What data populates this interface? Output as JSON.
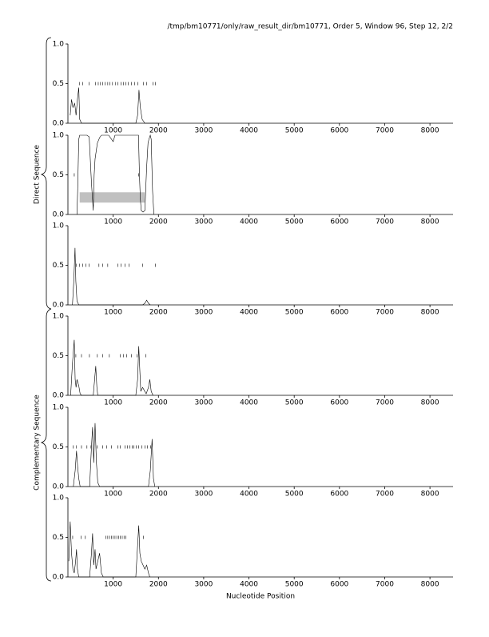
{
  "header": {
    "title": "/tmp/bm10771/only/raw_result_dir/bm10771, Order 5, Window 96, Step 12, 2/2"
  },
  "groups": [
    {
      "label": "Direct Sequence"
    },
    {
      "label": "Complementary Sequence"
    }
  ],
  "x_label": "Nucleotide Position",
  "chart_data": [
    {
      "type": "line",
      "xlim": [
        0,
        8510
      ],
      "ylim": [
        0,
        1
      ],
      "xticks": [
        1000,
        2000,
        3000,
        4000,
        5000,
        6000,
        7000,
        8000
      ],
      "yticks": [
        {
          "value": 0,
          "label": "0.0"
        },
        {
          "value": 0.5,
          "label": "0.5"
        },
        {
          "value": 1,
          "label": "1.0"
        }
      ],
      "x": [
        50,
        80,
        110,
        150,
        180,
        210,
        240,
        260,
        300,
        400,
        800,
        1400,
        1500,
        1540,
        1570,
        1600,
        1640,
        1700,
        2000
      ],
      "values": [
        0.1,
        0.3,
        0.2,
        0.25,
        0.1,
        0.3,
        0.45,
        0.05,
        0,
        0,
        0,
        0,
        0,
        0.1,
        0.42,
        0.2,
        0.05,
        0,
        0
      ],
      "mark_level": 0.5,
      "marks_x": [
        260,
        330,
        470,
        610,
        670,
        720,
        770,
        825,
        880,
        930,
        985,
        1055,
        1105,
        1175,
        1230,
        1280,
        1335,
        1405,
        1475,
        1545,
        1670,
        1740,
        1880,
        1930
      ]
    },
    {
      "type": "line",
      "xlim": [
        0,
        8510
      ],
      "ylim": [
        0,
        1
      ],
      "xticks": [
        1000,
        2000,
        3000,
        4000,
        5000,
        6000,
        7000,
        8000
      ],
      "yticks": [
        {
          "value": 0,
          "label": "0.0"
        },
        {
          "value": 0.5,
          "label": "0.5"
        },
        {
          "value": 1,
          "label": "1.0"
        }
      ],
      "x": [
        200,
        215,
        240,
        260,
        420,
        470,
        520,
        560,
        580,
        600,
        650,
        700,
        740,
        900,
        1000,
        1040,
        1080,
        1400,
        1560,
        1580,
        1600,
        1620,
        1660,
        1700,
        1740,
        1770,
        1790,
        1820,
        1840,
        1870,
        1900
      ],
      "values": [
        0,
        0.3,
        0.95,
        1,
        1,
        0.98,
        0.4,
        0.05,
        0.5,
        0.7,
        0.9,
        0.97,
        1,
        1,
        0.92,
        1,
        1,
        1,
        1,
        0.5,
        0.2,
        0.05,
        0.03,
        0.05,
        0.6,
        0.9,
        0.95,
        1,
        0.95,
        0.3,
        0
      ],
      "mark_level": 0.5,
      "marks_x": [
        140,
        1565
      ],
      "band": {
        "x": [
          260,
          1700
        ],
        "y": [
          0.15,
          0.28
        ],
        "color": "#c0c0c0"
      }
    },
    {
      "type": "line",
      "xlim": [
        0,
        8510
      ],
      "ylim": [
        0,
        1
      ],
      "xticks": [
        1000,
        2000,
        3000,
        4000,
        5000,
        6000,
        7000,
        8000
      ],
      "yticks": [
        {
          "value": 0,
          "label": "0.0"
        },
        {
          "value": 0.5,
          "label": "0.5"
        },
        {
          "value": 1,
          "label": "1.0"
        }
      ],
      "x": [
        100,
        130,
        157,
        175,
        200,
        240,
        1650,
        1700,
        1740,
        1780,
        1820
      ],
      "values": [
        0,
        0.3,
        0.72,
        0.3,
        0.05,
        0,
        0,
        0.02,
        0.06,
        0.02,
        0
      ],
      "mark_level": 0.5,
      "marks_x": [
        190,
        260,
        330,
        400,
        470,
        685,
        770,
        880,
        1105,
        1175,
        1265,
        1350,
        1650,
        1935
      ]
    },
    {
      "type": "line",
      "xlim": [
        0,
        8510
      ],
      "ylim": [
        0,
        1
      ],
      "xticks": [
        1000,
        2000,
        3000,
        4000,
        5000,
        6000,
        7000,
        8000
      ],
      "yticks": [
        {
          "value": 0,
          "label": "0.0"
        },
        {
          "value": 0.5,
          "label": "0.5"
        },
        {
          "value": 1,
          "label": "1.0"
        }
      ],
      "x": [
        60,
        100,
        140,
        160,
        180,
        200,
        240,
        270,
        300,
        560,
        590,
        615,
        640,
        660,
        1500,
        1540,
        1565,
        1590,
        1610,
        1650,
        1700,
        1730,
        1780,
        1810,
        1840,
        1880
      ],
      "values": [
        0,
        0.4,
        0.7,
        0.2,
        0.1,
        0.2,
        0.12,
        0.02,
        0,
        0,
        0.2,
        0.37,
        0.1,
        0,
        0,
        0.2,
        0.62,
        0.3,
        0.05,
        0.1,
        0.05,
        0.02,
        0.1,
        0.2,
        0.05,
        0
      ],
      "mark_level": 0.5,
      "marks_x": [
        175,
        300,
        475,
        650,
        770,
        915,
        1160,
        1230,
        1300,
        1405,
        1530,
        1720
      ]
    },
    {
      "type": "line",
      "xlim": [
        0,
        8510
      ],
      "ylim": [
        0,
        1
      ],
      "xticks": [
        1000,
        2000,
        3000,
        4000,
        5000,
        6000,
        7000,
        8000
      ],
      "yticks": [
        {
          "value": 0,
          "label": "0.0"
        },
        {
          "value": 0.5,
          "label": "0.5"
        },
        {
          "value": 1,
          "label": "1.0"
        }
      ],
      "x": [
        120,
        160,
        190,
        215,
        240,
        270,
        480,
        520,
        545,
        570,
        600,
        630,
        660,
        700,
        1780,
        1820,
        1860,
        1890,
        1920
      ],
      "values": [
        0,
        0.2,
        0.45,
        0.25,
        0.1,
        0,
        0,
        0.5,
        0.75,
        0.3,
        0.8,
        0.3,
        0.05,
        0,
        0,
        0.2,
        0.6,
        0.1,
        0
      ],
      "mark_level": 0.5,
      "marks_x": [
        120,
        190,
        300,
        420,
        510,
        650,
        770,
        860,
        965,
        1105,
        1160,
        1265,
        1315,
        1370,
        1425,
        1460,
        1510,
        1565,
        1635,
        1705,
        1755,
        1825
      ]
    },
    {
      "type": "line",
      "xlim": [
        0,
        8510
      ],
      "ylim": [
        0,
        1
      ],
      "xticks": [
        1000,
        2000,
        3000,
        4000,
        5000,
        6000,
        7000,
        8000
      ],
      "yticks": [
        {
          "value": 0,
          "label": "0.0"
        },
        {
          "value": 0.5,
          "label": "0.5"
        },
        {
          "value": 1,
          "label": "1.0"
        }
      ],
      "x": [
        20,
        50,
        80,
        110,
        140,
        170,
        190,
        210,
        240,
        480,
        520,
        545,
        570,
        600,
        620,
        660,
        700,
        740,
        780,
        1500,
        1530,
        1565,
        1590,
        1620,
        1660,
        1700,
        1740,
        1780,
        1810
      ],
      "values": [
        0.2,
        0.7,
        0.3,
        0.1,
        0.05,
        0.2,
        0.35,
        0.1,
        0,
        0,
        0.3,
        0.55,
        0.15,
        0.35,
        0.1,
        0.2,
        0.3,
        0.05,
        0,
        0,
        0.3,
        0.65,
        0.3,
        0.2,
        0.15,
        0.1,
        0.15,
        0.05,
        0
      ],
      "mark_level": 0.5,
      "marks_x": [
        105,
        295,
        385,
        840,
        880,
        920,
        960,
        1000,
        1040,
        1080,
        1120,
        1160,
        1200,
        1240,
        1280,
        1670
      ]
    }
  ]
}
